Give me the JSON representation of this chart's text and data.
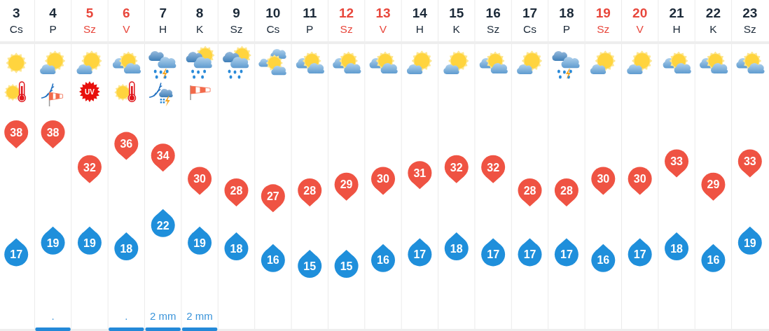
{
  "chart_data": {
    "type": "scatter",
    "categories": [
      "3\nCs",
      "4\nP",
      "5\nSz",
      "6\nV",
      "7\nH",
      "8\nK",
      "9\nSz",
      "10\nCs",
      "11\nP",
      "12\nSz",
      "13\nV",
      "14\nH",
      "15\nK",
      "16\nSz",
      "17\nCs",
      "18\nP",
      "19\nSz",
      "20\nV",
      "21\nH",
      "22\nK",
      "23\nSz"
    ],
    "series": [
      {
        "color": "#ef5343",
        "values": [
          38,
          38,
          32,
          36,
          34,
          30,
          28,
          27,
          28,
          29,
          30,
          31,
          32,
          32,
          28,
          28,
          30,
          30,
          33,
          29,
          33
        ]
      },
      {
        "color": "#1f8fdb",
        "values": [
          17,
          19,
          19,
          18,
          22,
          19,
          18,
          16,
          15,
          15,
          16,
          17,
          18,
          17,
          17,
          17,
          16,
          17,
          18,
          16,
          19
        ]
      }
    ],
    "data_labels": true,
    "tick_labels": "x",
    "grid": "x",
    "annotations": [
      "UV",
      ".",
      ".",
      "2 mm",
      "2 mm"
    ]
  }
}
